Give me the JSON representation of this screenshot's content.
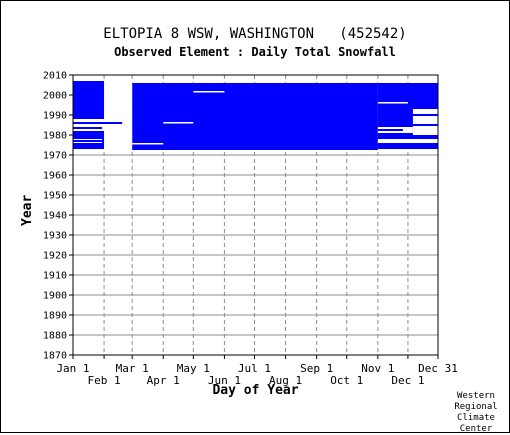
{
  "header": {
    "title": "ELTOPIA 8 WSW, WASHINGTON   (452542)",
    "subtitle": "Observed Element : Daily Total Snowfall"
  },
  "credit": [
    "Western",
    "Regional",
    "Climate",
    "Center"
  ],
  "chart_data": {
    "type": "heatmap",
    "title": "ELTOPIA 8 WSW, WASHINGTON   (452542)",
    "subtitle": "Observed Element : Daily Total Snowfall",
    "xlabel": "Day of Year",
    "ylabel": "Year",
    "xlim": [
      1,
      365
    ],
    "ylim": [
      1870,
      2010
    ],
    "x_ticks_top": [
      {
        "label": "Jan 1",
        "day": 1
      },
      {
        "label": "Mar 1",
        "day": 60
      },
      {
        "label": "May 1",
        "day": 121
      },
      {
        "label": "Jul 1",
        "day": 182
      },
      {
        "label": "Sep 1",
        "day": 244
      },
      {
        "label": "Nov 1",
        "day": 305
      },
      {
        "label": "Dec 31",
        "day": 365
      }
    ],
    "x_ticks_bottom": [
      {
        "label": "Feb 1",
        "day": 32
      },
      {
        "label": "Apr 1",
        "day": 91
      },
      {
        "label": "Jun 1",
        "day": 152
      },
      {
        "label": "Aug 1",
        "day": 213
      },
      {
        "label": "Oct 1",
        "day": 274
      },
      {
        "label": "Dec 1",
        "day": 335
      }
    ],
    "y_ticks": [
      "2010",
      "2000",
      "1990",
      "1980",
      "1970",
      "1960",
      "1950",
      "1940",
      "1930",
      "1920",
      "1910",
      "1900",
      "1890",
      "1880",
      "1870"
    ],
    "grid": true,
    "data_color": "#0000ff",
    "coverage": [
      {
        "day_start": 1,
        "day_end": 32,
        "year_start": 1973,
        "year_end": 2007,
        "desc": "early-winter records with gaps"
      },
      {
        "day_start": 60,
        "day_end": 305,
        "year_start": 1972.5,
        "year_end": 2006,
        "desc": "main dense block"
      },
      {
        "day_start": 305,
        "day_end": 365,
        "year_start": 1973,
        "year_end": 2006,
        "desc": "late-year records with gaps"
      }
    ],
    "gaps": [
      {
        "day_start": 1,
        "day_end": 55,
        "year_start": 1982,
        "year_end": 1988
      },
      {
        "day_start": 1,
        "day_end": 30,
        "year_start": 1976,
        "year_end": 1978
      },
      {
        "day_start": 32,
        "day_end": 60,
        "year_start": 1973,
        "year_end": 2007
      },
      {
        "day_start": 305,
        "day_end": 340,
        "year_start": 1981,
        "year_end": 1984
      },
      {
        "day_start": 305,
        "day_end": 365,
        "year_start": 1976,
        "year_end": 1978
      },
      {
        "day_start": 340,
        "day_end": 365,
        "year_start": 1980,
        "year_end": 1993
      }
    ]
  }
}
